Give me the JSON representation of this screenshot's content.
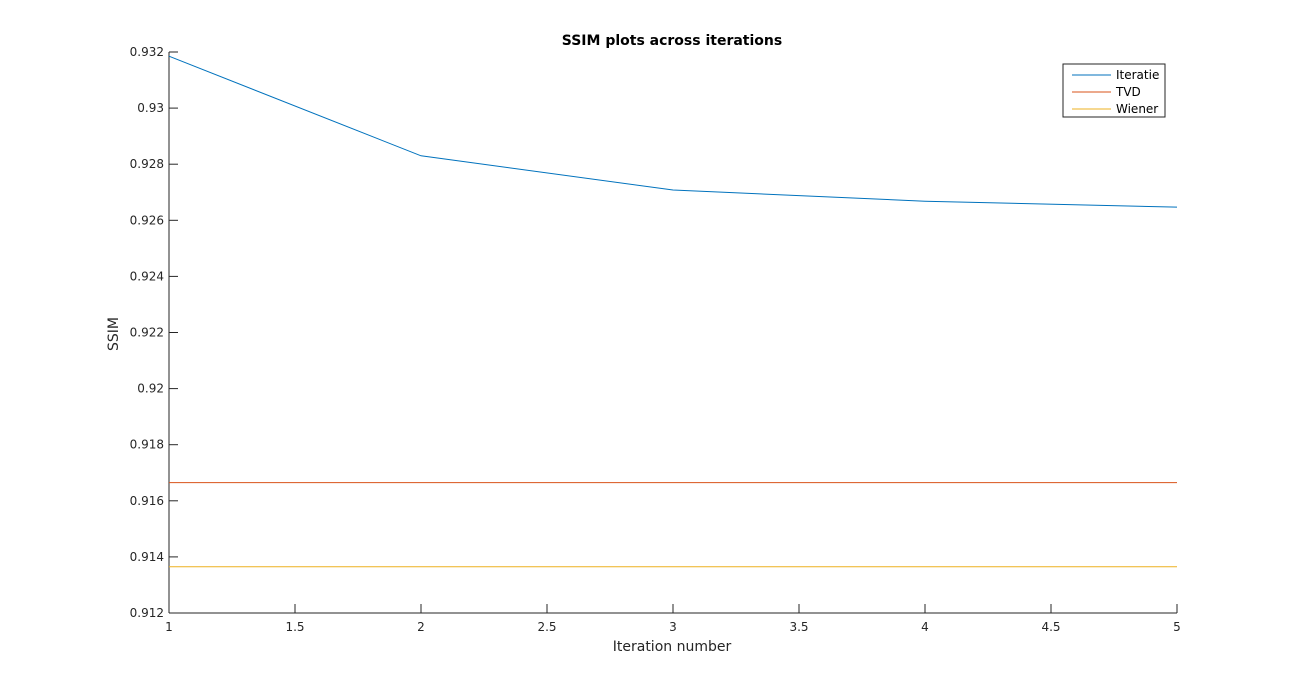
{
  "chart_data": {
    "type": "line",
    "title": "SSIM plots across iterations",
    "xlabel": "Iteration number",
    "ylabel": "SSIM",
    "xlim": [
      1,
      5
    ],
    "ylim": [
      0.912,
      0.932
    ],
    "xticks": [
      1,
      1.5,
      2,
      2.5,
      3,
      3.5,
      4,
      4.5,
      5
    ],
    "xtick_labels": [
      "1",
      "1.5",
      "2",
      "2.5",
      "3",
      "3.5",
      "4",
      "4.5",
      "5"
    ],
    "yticks": [
      0.912,
      0.914,
      0.916,
      0.918,
      0.92,
      0.922,
      0.924,
      0.926,
      0.928,
      0.93,
      0.932
    ],
    "ytick_labels": [
      "0.912",
      "0.914",
      "0.916",
      "0.918",
      "0.92",
      "0.922",
      "0.924",
      "0.926",
      "0.928",
      "0.93",
      "0.932"
    ],
    "grid": false,
    "legend_position": "top-right",
    "series": [
      {
        "name": "Iteratie",
        "color": "#0072BD",
        "x": [
          1,
          2,
          3,
          4,
          5
        ],
        "y": [
          0.93185,
          0.9283,
          0.92708,
          0.92668,
          0.92647
        ]
      },
      {
        "name": "TVD",
        "color": "#D95319",
        "x": [
          1,
          5
        ],
        "y": [
          0.91665,
          0.91665
        ]
      },
      {
        "name": "Wiener",
        "color": "#EDB120",
        "x": [
          1,
          5
        ],
        "y": [
          0.91365,
          0.91365
        ]
      }
    ]
  }
}
